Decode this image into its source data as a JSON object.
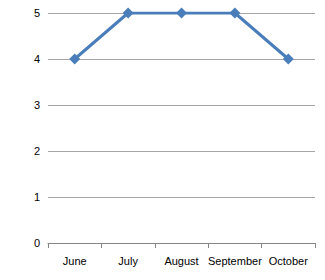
{
  "chart_data": {
    "type": "line",
    "categories": [
      "June",
      "July",
      "August",
      "September",
      "October"
    ],
    "values": [
      4,
      5,
      5,
      5,
      4
    ],
    "color": "#4a7ebb",
    "marker": "diamond",
    "ylim": [
      0,
      5
    ],
    "yticks": [
      0,
      1,
      2,
      3,
      4,
      5
    ],
    "grid": true
  }
}
